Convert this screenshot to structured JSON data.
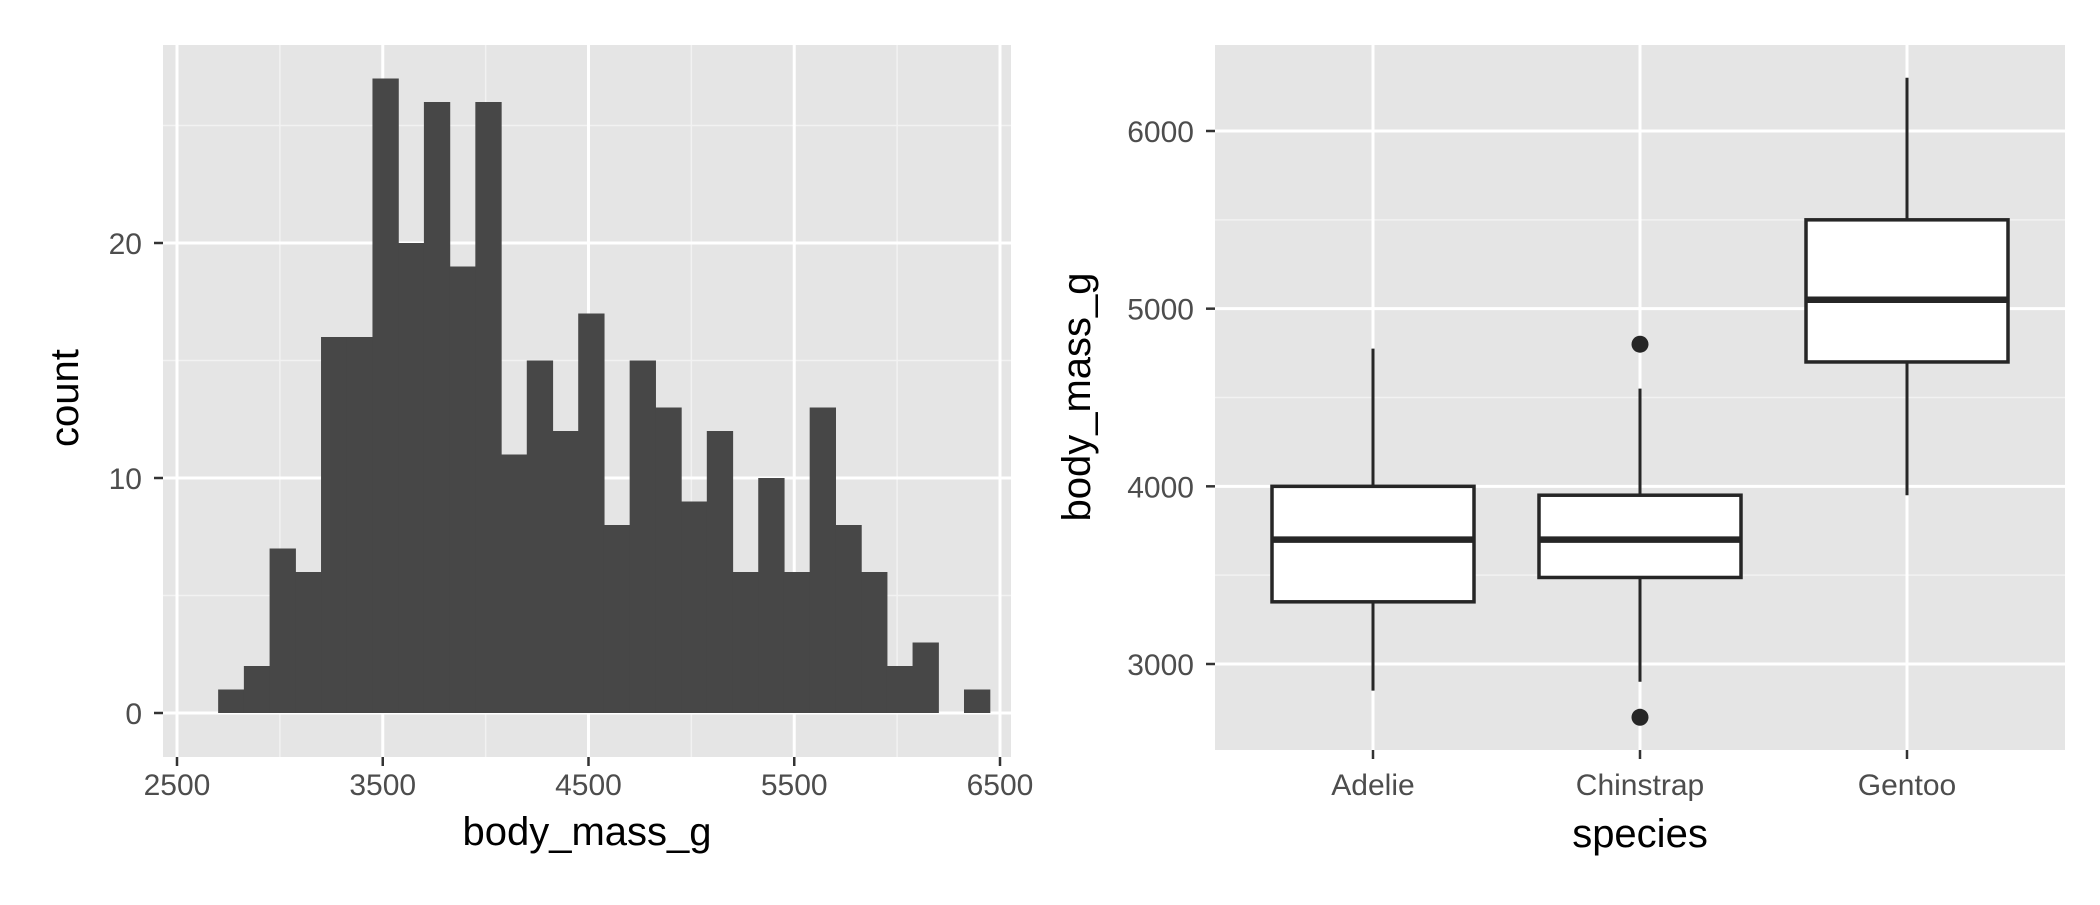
{
  "chart_data": [
    {
      "type": "bar",
      "subtype": "histogram",
      "xlabel": "body_mass_g",
      "ylabel": "count",
      "xlim": [
        2500,
        6500
      ],
      "ylim": [
        0,
        27
      ],
      "x_ticks": [
        "2500",
        "3500",
        "4500",
        "5500",
        "6500"
      ],
      "y_ticks": [
        "0",
        "10",
        "20"
      ],
      "bin_width": 125,
      "bins_start": [
        2700,
        2825,
        2950,
        3075,
        3200,
        3325,
        3450,
        3575,
        3700,
        3825,
        3950,
        4075,
        4200,
        4325,
        4450,
        4575,
        4700,
        4825,
        4950,
        5075,
        5200,
        5325,
        5450,
        5575,
        5700,
        5825,
        5950,
        6075,
        6200,
        6325
      ],
      "values": [
        1,
        2,
        7,
        6,
        16,
        16,
        27,
        20,
        26,
        19,
        26,
        11,
        15,
        12,
        17,
        8,
        15,
        13,
        9,
        12,
        6,
        10,
        6,
        13,
        8,
        6,
        2,
        3,
        0,
        1
      ],
      "bar_color": "#474747",
      "panel_color": "#e5e5e5",
      "grid": true
    },
    {
      "type": "box",
      "xlabel": "species",
      "ylabel": "body_mass_g",
      "categories": [
        "Adelie",
        "Chinstrap",
        "Gentoo"
      ],
      "y_ticks": [
        "3000",
        "4000",
        "5000",
        "6000"
      ],
      "ylim": [
        2550,
        6450
      ],
      "boxes": [
        {
          "category": "Adelie",
          "whisker_low": 2850,
          "q1": 3350,
          "median": 3700,
          "q3": 4000,
          "whisker_high": 4775,
          "outliers": []
        },
        {
          "category": "Chinstrap",
          "whisker_low": 2900,
          "q1": 3487,
          "median": 3700,
          "q3": 3950,
          "whisker_high": 4550,
          "outliers": [
            2700,
            4800
          ]
        },
        {
          "category": "Gentoo",
          "whisker_low": 3950,
          "q1": 4700,
          "median": 5050,
          "q3": 5500,
          "whisker_high": 6300,
          "outliers": []
        }
      ],
      "box_fill": "#ffffff",
      "line_color": "#262626",
      "panel_color": "#e5e5e5",
      "grid": true
    }
  ]
}
